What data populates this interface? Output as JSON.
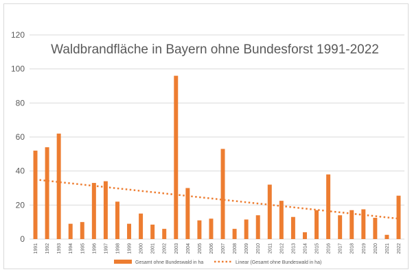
{
  "chart_data": {
    "type": "bar",
    "title": "Waldbrandfläche in Bayern ohne Bundesforst 1991-2022",
    "categories": [
      "1991",
      "1992",
      "1993",
      "1994",
      "1995",
      "1996",
      "1997",
      "1998",
      "1999",
      "2000",
      "2001",
      "2002",
      "2003",
      "2004",
      "2005",
      "2006",
      "2007",
      "2008",
      "2009",
      "2010",
      "2011",
      "2012",
      "2013",
      "2014",
      "2015",
      "2016",
      "2017",
      "2018",
      "2019",
      "2020",
      "2021",
      "2022"
    ],
    "series": [
      {
        "name": "Gesamt ohne Bundeswald in ha",
        "values": [
          52,
          54,
          62,
          9,
          10,
          33,
          34,
          22,
          9,
          15,
          8.5,
          6,
          96,
          30,
          11,
          12,
          53,
          6,
          11.5,
          14,
          32,
          22.5,
          13,
          4,
          17,
          38,
          14,
          17,
          17.5,
          12.5,
          2.5,
          25.5
        ]
      }
    ],
    "trendline": {
      "name": "Linear (Gesamt ohne Bundeswald in ha)",
      "start": 35,
      "end": 12
    },
    "y_ticks": [
      "0",
      "20",
      "40",
      "60",
      "80",
      "100",
      "120"
    ],
    "ylim": [
      0,
      120
    ],
    "grid": true,
    "legend_position": "bottom",
    "colors": {
      "bar": "#ED7D31",
      "trend": "#ED7D31",
      "grid": "#d9d9d9",
      "text": "#595959"
    }
  }
}
